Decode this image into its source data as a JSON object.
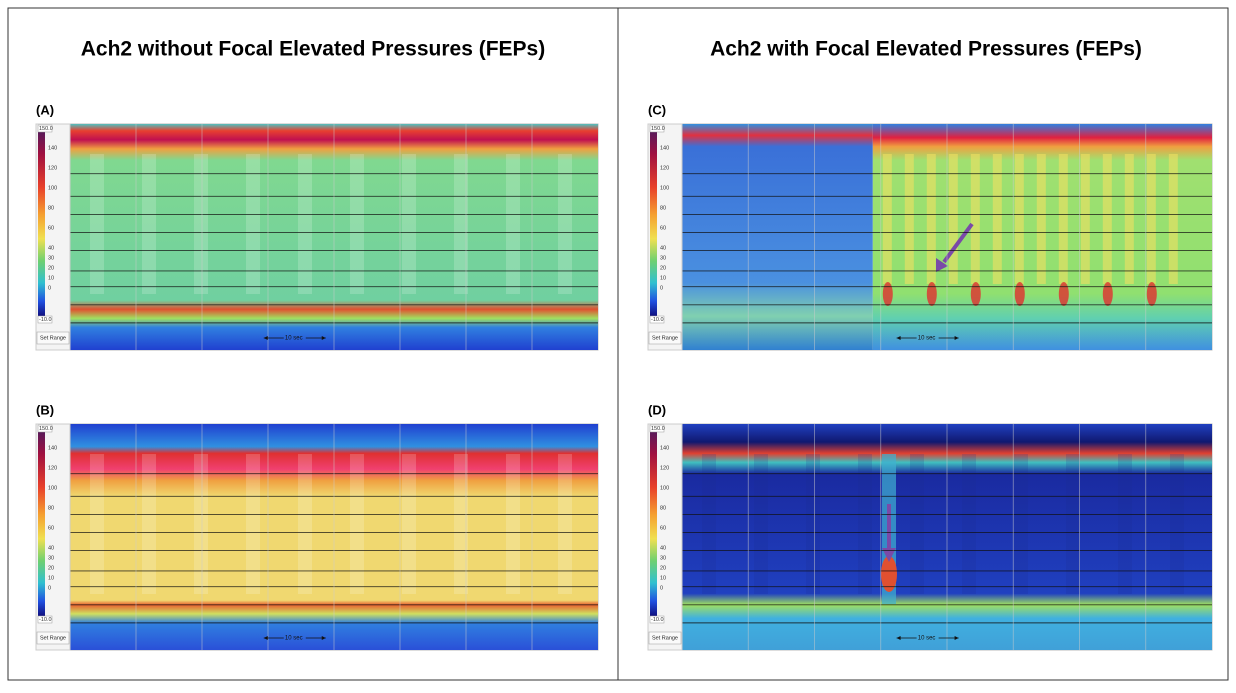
{
  "columns": [
    {
      "title": "Ach2 without Focal Elevated Pressures (FEPs)",
      "panels": [
        {
          "label": "(A)"
        },
        {
          "label": "(B)"
        }
      ]
    },
    {
      "title": "Ach2 with Focal Elevated Pressures (FEPs)",
      "panels": [
        {
          "label": "(C)"
        },
        {
          "label": "(D)"
        }
      ]
    }
  ],
  "colorbar": {
    "max": "150.0",
    "min": "-10.0",
    "ticks": [
      "140",
      "120",
      "100",
      "80",
      "60",
      "40",
      "30",
      "20",
      "10",
      "0"
    ]
  },
  "button": "Set Range",
  "scale": "10 sec"
}
